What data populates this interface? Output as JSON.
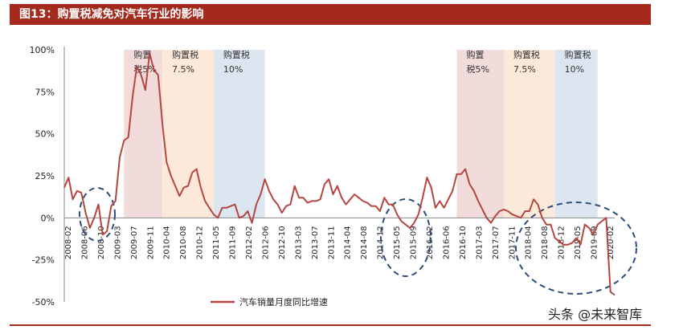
{
  "header": {
    "title": "图13：购置税减免对汽车行业的影响"
  },
  "watermark": "头条 @未来智库",
  "chart_data": {
    "type": "line",
    "title": "图13：购置税减免对汽车行业的影响",
    "xlabel": "",
    "ylabel": "",
    "ylim": [
      -0.5,
      1.0
    ],
    "yticks": [
      "100%",
      "75%",
      "50%",
      "25%",
      "0%",
      "-25%",
      "-50%"
    ],
    "x_tick_labels": [
      "2008-02",
      "2008-06",
      "2008-10",
      "2009-03",
      "2009-07",
      "2009-11",
      "2010-04",
      "2010-08",
      "2010-12",
      "2011-05",
      "2011-09",
      "2012-02",
      "2012-06",
      "2012-10",
      "2013-03",
      "2013-07",
      "2013-11",
      "2014-04",
      "2014-08",
      "2014-12",
      "2015-05",
      "2015-09",
      "2016-02",
      "2016-06",
      "2016-10",
      "2017-03",
      "2017-07",
      "2017-11",
      "2018-04",
      "2018-08",
      "2018-12",
      "2019-05",
      "2019-09",
      "2020-02"
    ],
    "legend": {
      "placement": "bottom-center",
      "entries": [
        "汽车销量月度同比增速"
      ]
    },
    "series": [
      {
        "name": "汽车销量月度同比增速",
        "color": "#b5463f",
        "values": [
          0.18,
          0.24,
          0.11,
          0.16,
          0.15,
          0.03,
          -0.06,
          0.0,
          0.08,
          -0.1,
          -0.08,
          0.07,
          0.1,
          0.36,
          0.46,
          0.48,
          0.72,
          0.9,
          0.85,
          0.76,
          0.98,
          0.88,
          0.85,
          0.56,
          0.33,
          0.25,
          0.19,
          0.13,
          0.18,
          0.19,
          0.27,
          0.29,
          0.18,
          0.1,
          0.06,
          0.02,
          0.0,
          0.06,
          0.06,
          0.07,
          0.08,
          0.0,
          0.01,
          0.04,
          -0.03,
          0.08,
          0.14,
          0.23,
          0.16,
          0.11,
          0.08,
          0.03,
          0.07,
          0.08,
          0.19,
          0.12,
          0.12,
          0.09,
          0.1,
          0.1,
          0.11,
          0.2,
          0.23,
          0.14,
          0.19,
          0.12,
          0.08,
          0.11,
          0.14,
          0.12,
          0.1,
          0.09,
          0.07,
          0.07,
          0.04,
          0.12,
          0.08,
          0.08,
          0.02,
          -0.02,
          -0.04,
          -0.06,
          -0.03,
          0.02,
          0.12,
          0.24,
          0.18,
          0.06,
          0.1,
          0.06,
          0.11,
          0.16,
          0.26,
          0.26,
          0.29,
          0.2,
          0.16,
          0.1,
          0.05,
          0.0,
          -0.03,
          0.01,
          0.04,
          0.05,
          0.04,
          0.02,
          0.01,
          0.0,
          0.04,
          0.04,
          0.11,
          0.08,
          0.0,
          -0.04,
          -0.04,
          -0.12,
          -0.14,
          -0.16,
          -0.16,
          -0.15,
          -0.12,
          -0.16,
          -0.04,
          -0.06,
          -0.1,
          -0.04,
          -0.02,
          0.0,
          -0.44,
          -0.46
        ]
      }
    ],
    "policy_bands": [
      {
        "line1": "购置",
        "line2": "税5%",
        "color": "#f2dcdb",
        "start": 14,
        "end": 23
      },
      {
        "line1": "购置税",
        "line2": "7.5%",
        "color": "#fde9d9",
        "start": 23,
        "end": 35
      },
      {
        "line1": "购置税",
        "line2": "10%",
        "color": "#dce6f1",
        "start": 35,
        "end": 47
      },
      {
        "line1": "购置",
        "line2": "税5%",
        "color": "#f2dcdb",
        "start": 92,
        "end": 103
      },
      {
        "line1": "购置税",
        "line2": "7.5%",
        "color": "#fde9d9",
        "start": 103,
        "end": 115
      },
      {
        "line1": "购置税",
        "line2": "10%",
        "color": "#dce6f1",
        "start": 115,
        "end": 125
      }
    ],
    "annotations": [
      {
        "shape": "dashed-ellipse",
        "around": "2008-06 to 2009-03",
        "color": "#2e4d7b"
      },
      {
        "shape": "dashed-ellipse",
        "around": "2015-05 to 2015-09",
        "color": "#2e4d7b"
      },
      {
        "shape": "dashed-ellipse",
        "around": "2018-04 to 2020-02",
        "color": "#2e4d7b"
      }
    ]
  }
}
